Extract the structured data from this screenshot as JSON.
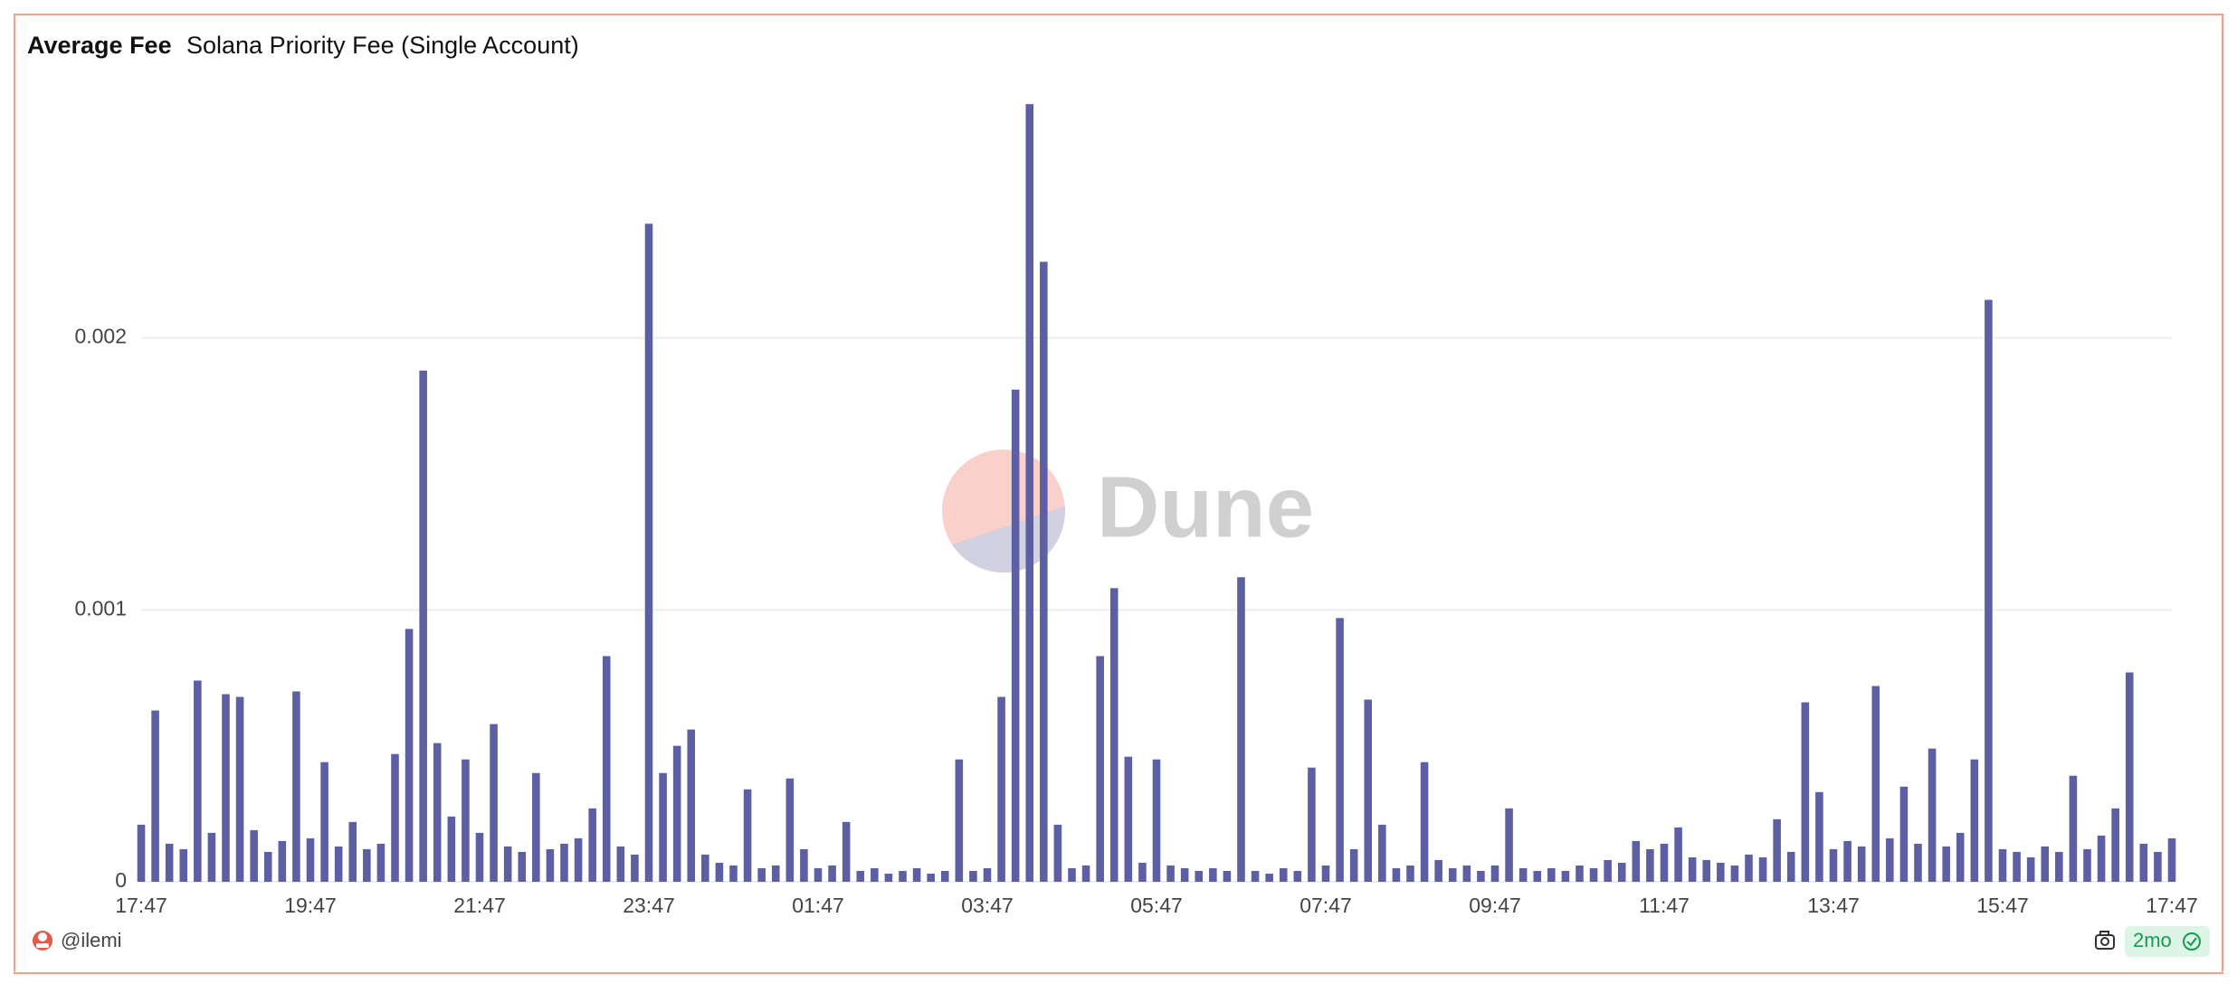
{
  "chart_data": {
    "type": "bar",
    "title": "Average Fee",
    "subtitle": "Solana Priority Fee (Single Account)",
    "watermark": "Dune",
    "author": "@ilemi",
    "age": "2mo",
    "color": "#5c5fa3",
    "grid": true,
    "ylim": [
      0,
      0.003
    ],
    "yticks": [
      0,
      0.001,
      0.002
    ],
    "categories": [
      "17:47",
      null,
      null,
      null,
      null,
      null,
      null,
      null,
      null,
      null,
      null,
      null,
      "19:47",
      null,
      null,
      null,
      null,
      null,
      null,
      null,
      null,
      null,
      null,
      null,
      "21:47",
      null,
      null,
      null,
      null,
      null,
      null,
      null,
      null,
      null,
      null,
      null,
      "23:47",
      null,
      null,
      null,
      null,
      null,
      null,
      null,
      null,
      null,
      null,
      null,
      "01:47",
      null,
      null,
      null,
      null,
      null,
      null,
      null,
      null,
      null,
      null,
      null,
      "03:47",
      null,
      null,
      null,
      null,
      null,
      null,
      null,
      null,
      null,
      null,
      null,
      "05:47",
      null,
      null,
      null,
      null,
      null,
      null,
      null,
      null,
      null,
      null,
      null,
      "07:47",
      null,
      null,
      null,
      null,
      null,
      null,
      null,
      null,
      null,
      null,
      null,
      "09:47",
      null,
      null,
      null,
      null,
      null,
      null,
      null,
      null,
      null,
      null,
      null,
      "11:47",
      null,
      null,
      null,
      null,
      null,
      null,
      null,
      null,
      null,
      null,
      null,
      "13:47",
      null,
      null,
      null,
      null,
      null,
      null,
      null,
      null,
      null,
      null,
      null,
      "15:47",
      null,
      null,
      null,
      null,
      null,
      null,
      null,
      null,
      null,
      null,
      null,
      "17:47"
    ],
    "values": [
      0.00021,
      0.00063,
      0.00014,
      0.00012,
      0.00074,
      0.00018,
      0.00069,
      0.00068,
      0.00019,
      0.00011,
      0.00015,
      0.0007,
      0.00016,
      0.00044,
      0.00013,
      0.00022,
      0.00012,
      0.00014,
      0.00047,
      0.00093,
      0.00188,
      0.00051,
      0.00024,
      0.00045,
      0.00018,
      0.00058,
      0.00013,
      0.00011,
      0.0004,
      0.00012,
      0.00014,
      0.00016,
      0.00027,
      0.00083,
      0.00013,
      0.0001,
      0.00242,
      0.0004,
      0.0005,
      0.00056,
      0.0001,
      7e-05,
      6e-05,
      0.00034,
      5e-05,
      6e-05,
      0.00038,
      0.00012,
      5e-05,
      6e-05,
      0.00022,
      4e-05,
      5e-05,
      3e-05,
      4e-05,
      5e-05,
      3e-05,
      4e-05,
      0.00045,
      4e-05,
      5e-05,
      0.00068,
      0.00181,
      0.00286,
      0.00228,
      0.00021,
      5e-05,
      6e-05,
      0.00083,
      0.00108,
      0.00046,
      7e-05,
      0.00045,
      6e-05,
      5e-05,
      4e-05,
      5e-05,
      4e-05,
      0.00112,
      4e-05,
      3e-05,
      5e-05,
      4e-05,
      0.00042,
      6e-05,
      0.00097,
      0.00012,
      0.00067,
      0.00021,
      5e-05,
      6e-05,
      0.00044,
      8e-05,
      5e-05,
      6e-05,
      4e-05,
      6e-05,
      0.00027,
      5e-05,
      4e-05,
      5e-05,
      4e-05,
      6e-05,
      5e-05,
      8e-05,
      7e-05,
      0.00015,
      0.00012,
      0.00014,
      0.0002,
      9e-05,
      8e-05,
      7e-05,
      6e-05,
      0.0001,
      9e-05,
      0.00023,
      0.00011,
      0.00066,
      0.00033,
      0.00012,
      0.00015,
      0.00013,
      0.00072,
      0.00016,
      0.00035,
      0.00014,
      0.00049,
      0.00013,
      0.00018,
      0.00045,
      0.00214,
      0.00012,
      0.00011,
      9e-05,
      0.00013,
      0.00011,
      0.00039,
      0.00012,
      0.00017,
      0.00027,
      0.00077,
      0.00014,
      0.00011,
      0.00016
    ]
  }
}
